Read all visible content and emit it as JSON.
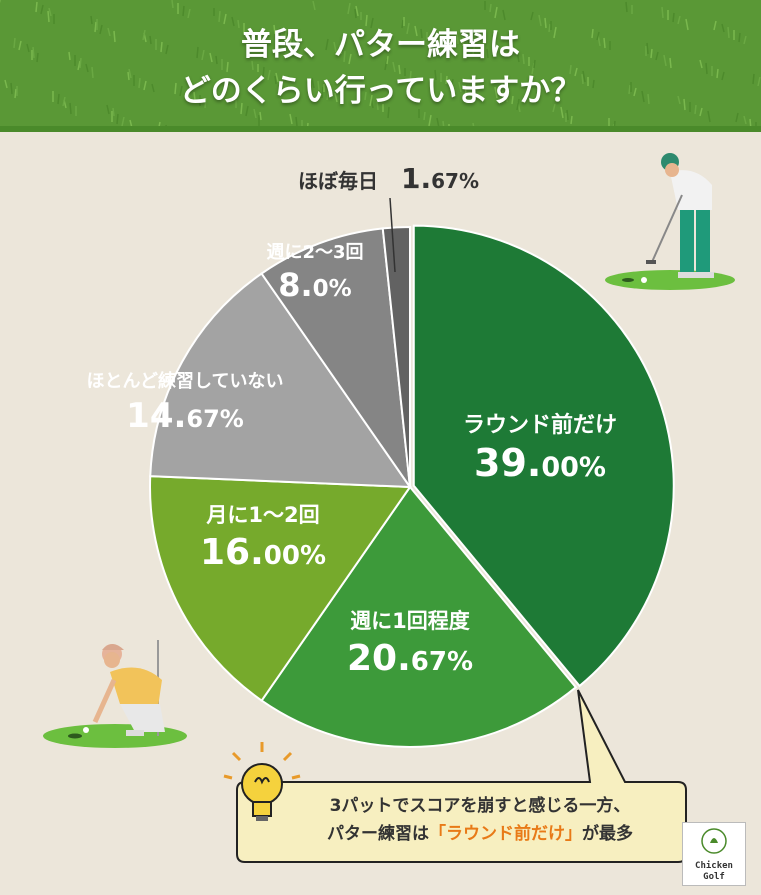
{
  "title": {
    "line1": "普段、パター練習は",
    "line2": "どのくらい行っていますか？"
  },
  "chart_data": {
    "type": "pie",
    "title": "普段、パター練習はどのくらい行っていますか？",
    "slices": [
      {
        "name": "ラウンド前だけ",
        "value": 39.0,
        "value_main": "39.",
        "value_rest": "00%",
        "color": "#1e7a36",
        "text_color": "#ffffff"
      },
      {
        "name": "週に1回程度",
        "value": 20.67,
        "value_main": "20.",
        "value_rest": "67%",
        "color": "#3d9a3a",
        "text_color": "#ffffff"
      },
      {
        "name": "月に1〜2回",
        "value": 16.0,
        "value_main": "16.",
        "value_rest": "00%",
        "color": "#76aa2c",
        "text_color": "#ffffff"
      },
      {
        "name": "ほとんど練習していない",
        "value": 14.67,
        "value_main": "14.",
        "value_rest": "67%",
        "color": "#a3a3a3",
        "text_color": "#ffffff"
      },
      {
        "name": "週に2〜3回",
        "value": 8.0,
        "value_main": "8.",
        "value_rest": "0%",
        "color": "#858585",
        "text_color": "#ffffff"
      },
      {
        "name": "ほぼ毎日",
        "value": 1.67,
        "value_main": "1.",
        "value_rest": "67%",
        "color": "#626262",
        "text_color": "#333333"
      }
    ]
  },
  "callout": {
    "line1": "3パットでスコアを崩すと感じる一方、",
    "line2_prefix": "パター練習は",
    "line2_highlight": "「ラウンド前だけ」",
    "line2_suffix": "が最多"
  },
  "logo": {
    "line1": "Chicken",
    "line2": "Golf"
  }
}
